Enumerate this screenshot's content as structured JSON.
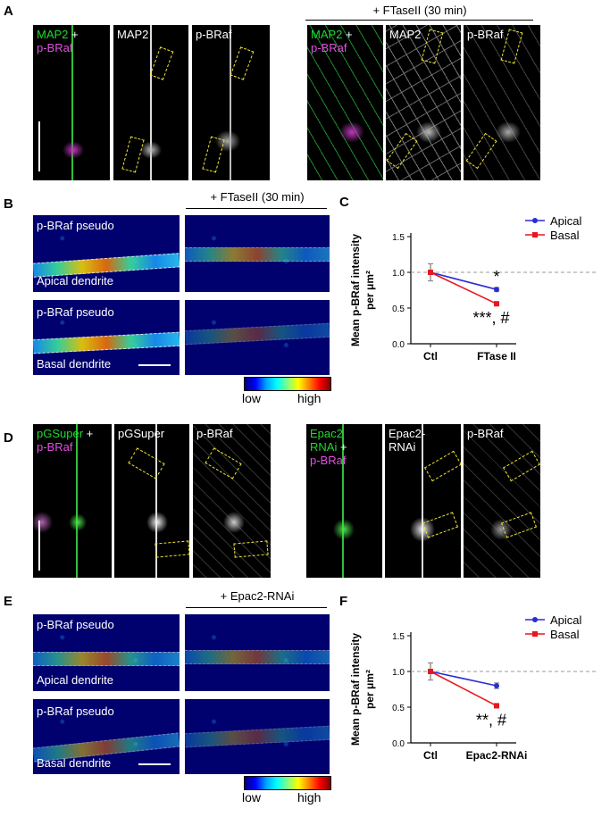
{
  "panels": {
    "A": {
      "letter": "A",
      "header": "+ FTaseII (30 min)",
      "ctl": {
        "merge_line1": "MAP2",
        "merge_plus": "+",
        "merge_line2": "p-BRaf",
        "map2": "MAP2",
        "pbraf": "p-BRaf"
      },
      "treated": {
        "merge_line1": "MAP2",
        "merge_plus": "+",
        "merge_line2": "p-BRaf",
        "map2": "MAP2",
        "pbraf": "p-BRaf"
      }
    },
    "B": {
      "letter": "B",
      "header": "+ FTaseII (30 min)",
      "top_label": "p-BRaf pseudo",
      "top_region": "Apical dendrite",
      "bottom_label": "p-BRaf pseudo",
      "bottom_region": "Basal dendrite",
      "low": "low",
      "high": "high"
    },
    "D": {
      "letter": "D",
      "ctl": {
        "merge_line1": "pGSuper",
        "merge_plus": "+",
        "merge_line2": "p-BRaf",
        "gfp": "pGSuper",
        "pbraf": "p-BRaf"
      },
      "treated": {
        "merge_line1": "Epac2",
        "merge_line2": "RNAi",
        "merge_plus": "+",
        "merge_line3": "p-BRaf",
        "gfp_line1": "Epac2-",
        "gfp_line2": "RNAi",
        "pbraf": "p-BRaf"
      }
    },
    "E": {
      "letter": "E",
      "header": "+ Epac2-RNAi",
      "top_label": "p-BRaf pseudo",
      "top_region": "Apical dendrite",
      "bottom_label": "p-BRaf pseudo",
      "bottom_region": "Basal dendrite",
      "low": "low",
      "high": "high"
    }
  },
  "chart_data": [
    {
      "letter": "C",
      "type": "line",
      "categories": [
        "Ctl",
        "FTase II"
      ],
      "ylabel_line1": "Mean p-BRaf intensity",
      "ylabel_line2": "per μm²",
      "ylim": [
        0,
        1.5
      ],
      "yticks": [
        "0.0",
        "0.5",
        "1.0",
        "1.5"
      ],
      "reference_line": 1.0,
      "legend_position": "top-right",
      "series": [
        {
          "name": "Apical",
          "color": "#2b2bd6",
          "values": [
            1.0,
            0.76
          ],
          "errors": [
            0.12,
            0.03
          ],
          "sig": "*"
        },
        {
          "name": "Basal",
          "color": "#e8171c",
          "values": [
            1.0,
            0.56
          ],
          "errors": [
            0.12,
            0.02
          ],
          "sig": "***, #"
        }
      ]
    },
    {
      "letter": "F",
      "type": "line",
      "categories": [
        "Ctl",
        "Epac2-RNAi"
      ],
      "ylabel_line1": "Mean p-BRaf intensity",
      "ylabel_line2": "per μm²",
      "ylim": [
        0,
        1.5
      ],
      "yticks": [
        "0.0",
        "0.5",
        "1.0",
        "1.5"
      ],
      "reference_line": 1.0,
      "legend_position": "top-right",
      "series": [
        {
          "name": "Apical",
          "color": "#2b2bd6",
          "values": [
            1.0,
            0.8
          ],
          "errors": [
            0.12,
            0.04
          ],
          "sig": ""
        },
        {
          "name": "Basal",
          "color": "#e8171c",
          "values": [
            1.0,
            0.52
          ],
          "errors": [
            0.12,
            0.03
          ],
          "sig": "**, #"
        }
      ]
    }
  ]
}
